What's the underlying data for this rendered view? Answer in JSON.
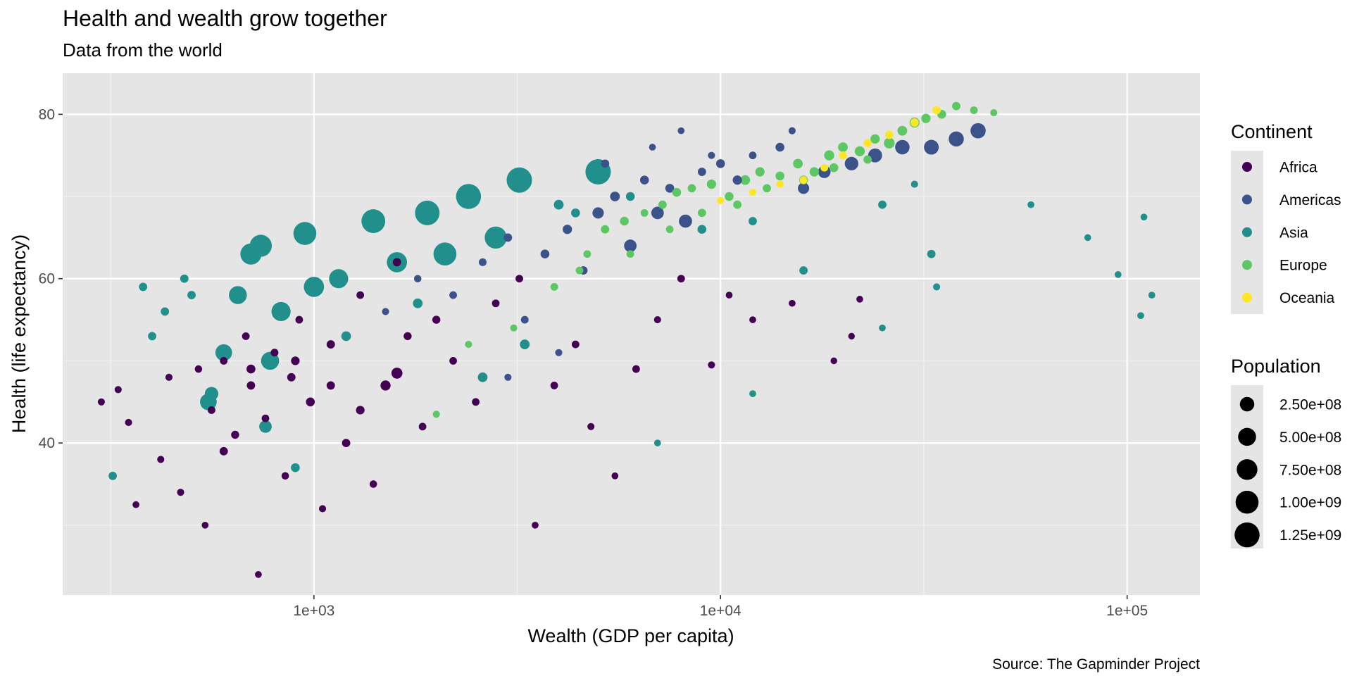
{
  "chart_data": {
    "type": "scatter",
    "title": "Health and wealth grow together",
    "subtitle": "Data from the world",
    "xlabel": "Wealth (GDP per capita)",
    "ylabel": "Health (life expectancy)",
    "caption": "Source: The Gapminder Project",
    "x_scale": "log10",
    "xlim": [
      241,
      151000
    ],
    "ylim": [
      21.5,
      85
    ],
    "x_ticks": [
      {
        "value": 1000,
        "label": "1e+03"
      },
      {
        "value": 10000,
        "label": "1e+04"
      },
      {
        "value": 100000,
        "label": "1e+05"
      }
    ],
    "y_ticks": [
      {
        "value": 40,
        "label": "40"
      },
      {
        "value": 60,
        "label": "60"
      },
      {
        "value": 80,
        "label": "80"
      }
    ],
    "color_legend": {
      "title": "Continent",
      "items": [
        {
          "label": "Africa",
          "color": "#440154"
        },
        {
          "label": "Americas",
          "color": "#3B528B"
        },
        {
          "label": "Asia",
          "color": "#21908C"
        },
        {
          "label": "Europe",
          "color": "#5DC863"
        },
        {
          "label": "Oceania",
          "color": "#FDE725"
        }
      ]
    },
    "size_legend": {
      "title": "Population",
      "items": [
        {
          "label": "2.50e+08",
          "value": 250000000
        },
        {
          "label": "5.00e+08",
          "value": 500000000
        },
        {
          "label": "7.50e+08",
          "value": 750000000
        },
        {
          "label": "1.00e+09",
          "value": 1000000000
        },
        {
          "label": "1.25e+09",
          "value": 1250000000
        }
      ]
    },
    "series": [
      {
        "name": "Africa",
        "points": [
          [
            300,
            45,
            5000000.0
          ],
          [
            330,
            46.5,
            5000000.0
          ],
          [
            350,
            42.5,
            5000000.0
          ],
          [
            365,
            32.5,
            3000000.0
          ],
          [
            420,
            38,
            5000000.0
          ],
          [
            440,
            48,
            5000000.0
          ],
          [
            470,
            34,
            5000000.0
          ],
          [
            520,
            49,
            8000000.0
          ],
          [
            540,
            30,
            3000000.0
          ],
          [
            560,
            44,
            10000000.0
          ],
          [
            600,
            50,
            10000000.0
          ],
          [
            640,
            41,
            15000000.0
          ],
          [
            680,
            53,
            10000000.0
          ],
          [
            700,
            47,
            20000000.0
          ],
          [
            730,
            24,
            3000000.0
          ],
          [
            760,
            43,
            10000000.0
          ],
          [
            800,
            51,
            12000000.0
          ],
          [
            850,
            36,
            8000000.0
          ],
          [
            880,
            48,
            20000000.0
          ],
          [
            920,
            55,
            10000000.0
          ],
          [
            980,
            45,
            30000000.0
          ],
          [
            1050,
            32,
            5000000.0
          ],
          [
            1100,
            52,
            20000000.0
          ],
          [
            1200,
            40,
            20000000.0
          ],
          [
            1300,
            58,
            10000000.0
          ],
          [
            1400,
            35,
            8000000.0
          ],
          [
            1500,
            47,
            60000000.0
          ],
          [
            1600,
            48.5,
            90000000.0
          ],
          [
            1700,
            53,
            15000000.0
          ],
          [
            1850,
            42,
            10000000.0
          ],
          [
            2000,
            55,
            15000000.0
          ],
          [
            2200,
            50,
            10000000.0
          ],
          [
            2500,
            45,
            10000000.0
          ],
          [
            2800,
            57,
            10000000.0
          ],
          [
            3200,
            60,
            10000000.0
          ],
          [
            3500,
            30,
            3000000.0
          ],
          [
            3900,
            47,
            10000000.0
          ],
          [
            4400,
            52,
            10000000.0
          ],
          [
            4800,
            42,
            5000000.0
          ],
          [
            5500,
            36,
            3000000.0
          ],
          [
            6200,
            49,
            10000000.0
          ],
          [
            7000,
            55,
            5000000.0
          ],
          [
            8000,
            60,
            10000000.0
          ],
          [
            9500,
            49.5,
            5000000.0
          ],
          [
            10500,
            58,
            3000000.0
          ],
          [
            12000,
            55,
            3000000.0
          ],
          [
            15000,
            57,
            3000000.0
          ],
          [
            19000,
            50,
            2000000.0
          ],
          [
            21000,
            53,
            2000000.0
          ],
          [
            22000,
            57.5,
            3000000.0
          ],
          [
            700,
            49,
            30000000.0
          ],
          [
            900,
            50,
            25000000.0
          ],
          [
            1100,
            47,
            20000000.0
          ],
          [
            1300,
            44,
            25000000.0
          ],
          [
            600,
            39,
            20000000.0
          ],
          [
            1600,
            62,
            20000000.0
          ]
        ]
      },
      {
        "name": "Americas",
        "points": [
          [
            1500,
            56,
            5000000.0
          ],
          [
            1800,
            60,
            8000000.0
          ],
          [
            2200,
            58,
            10000000.0
          ],
          [
            2600,
            62,
            12000000.0
          ],
          [
            3000,
            65,
            20000000.0
          ],
          [
            3300,
            55,
            10000000.0
          ],
          [
            3700,
            63,
            30000000.0
          ],
          [
            4200,
            66,
            40000000.0
          ],
          [
            4600,
            61,
            20000000.0
          ],
          [
            5000,
            68,
            100000000.0
          ],
          [
            5500,
            70,
            50000000.0
          ],
          [
            6000,
            64,
            150000000.0
          ],
          [
            6500,
            72,
            30000000.0
          ],
          [
            7000,
            68,
            150000000.0
          ],
          [
            7500,
            71,
            30000000.0
          ],
          [
            8200,
            67,
            180000000.0
          ],
          [
            9000,
            73,
            20000000.0
          ],
          [
            10000,
            74,
            30000000.0
          ],
          [
            11000,
            72,
            40000000.0
          ],
          [
            12000,
            75,
            10000000.0
          ],
          [
            14000,
            76,
            30000000.0
          ],
          [
            16000,
            71,
            100000000.0
          ],
          [
            18000,
            73,
            150000000.0
          ],
          [
            21000,
            74,
            200000000.0
          ],
          [
            24000,
            75,
            220000000.0
          ],
          [
            28000,
            76,
            250000000.0
          ],
          [
            33000,
            76,
            270000000.0
          ],
          [
            38000,
            77,
            290000000.0
          ],
          [
            43000,
            78,
            300000000.0
          ],
          [
            3000,
            48,
            5000000.0
          ],
          [
            4000,
            51,
            5000000.0
          ],
          [
            6800,
            76,
            3000000.0
          ],
          [
            8000,
            78,
            3000000.0
          ],
          [
            9500,
            75,
            5000000.0
          ],
          [
            15000,
            78,
            5000000.0
          ],
          [
            5200,
            74,
            20000000.0
          ]
        ]
      },
      {
        "name": "Asia",
        "points": [
          [
            320,
            36,
            20000000.0
          ],
          [
            380,
            59,
            20000000.0
          ],
          [
            400,
            53,
            20000000.0
          ],
          [
            430,
            56,
            20000000.0
          ],
          [
            480,
            60,
            20000000.0
          ],
          [
            500,
            58,
            20000000.0
          ],
          [
            550,
            45,
            400000000.0
          ],
          [
            600,
            51,
            400000000.0
          ],
          [
            650,
            58,
            500000000.0
          ],
          [
            700,
            63,
            800000000.0
          ],
          [
            740,
            64,
            900000000.0
          ],
          [
            780,
            50,
            500000000.0
          ],
          [
            830,
            56,
            600000000.0
          ],
          [
            950,
            65.5,
            1000000000.0
          ],
          [
            1000,
            59,
            700000000.0
          ],
          [
            1150,
            60,
            600000000.0
          ],
          [
            1400,
            67,
            1100000000.0
          ],
          [
            1600,
            62,
            700000000.0
          ],
          [
            1900,
            68,
            1200000000.0
          ],
          [
            2100,
            63,
            1000000000.0
          ],
          [
            2400,
            70,
            1250000000.0
          ],
          [
            2800,
            65,
            900000000.0
          ],
          [
            3200,
            72,
            1300000000.0
          ],
          [
            5000,
            73,
            1300000000.0
          ],
          [
            4000,
            69,
            50000000.0
          ],
          [
            3300,
            52,
            50000000.0
          ],
          [
            2600,
            48,
            50000000.0
          ],
          [
            4400,
            68,
            30000000.0
          ],
          [
            6000,
            70,
            30000000.0
          ],
          [
            9000,
            66,
            30000000.0
          ],
          [
            12000,
            67,
            20000000.0
          ],
          [
            16000,
            61,
            20000000.0
          ],
          [
            25000,
            69,
            20000000.0
          ],
          [
            33000,
            63,
            20000000.0
          ],
          [
            58000,
            69,
            3000000.0
          ],
          [
            80000,
            65,
            3000000.0
          ],
          [
            95000,
            60.5,
            3000000.0
          ],
          [
            108000,
            55.5,
            3000000.0
          ],
          [
            110000,
            67.5,
            3000000.0
          ],
          [
            115000,
            58,
            3000000.0
          ],
          [
            34000,
            59,
            5000000.0
          ],
          [
            30000,
            71.5,
            5000000.0
          ],
          [
            12000,
            46,
            3000000.0
          ],
          [
            7000,
            40,
            3000000.0
          ],
          [
            900,
            37,
            30000000.0
          ],
          [
            760,
            42,
            150000000.0
          ],
          [
            560,
            46,
            200000000.0
          ],
          [
            1200,
            53,
            50000000.0
          ],
          [
            1800,
            57,
            50000000.0
          ],
          [
            25000,
            54,
            3000000.0
          ]
        ]
      },
      {
        "name": "Europe",
        "points": [
          [
            2000,
            43.5,
            5000000.0
          ],
          [
            2400,
            52,
            5000000.0
          ],
          [
            3100,
            54,
            5000000.0
          ],
          [
            3900,
            59,
            10000000.0
          ],
          [
            4500,
            61,
            10000000.0
          ],
          [
            4700,
            63,
            10000000.0
          ],
          [
            5200,
            66,
            20000000.0
          ],
          [
            5800,
            67,
            30000000.0
          ],
          [
            6500,
            68,
            10000000.0
          ],
          [
            7200,
            69,
            20000000.0
          ],
          [
            7800,
            70.5,
            30000000.0
          ],
          [
            8500,
            71,
            20000000.0
          ],
          [
            9500,
            71.5,
            40000000.0
          ],
          [
            10500,
            70,
            30000000.0
          ],
          [
            11500,
            72,
            50000000.0
          ],
          [
            12500,
            73,
            40000000.0
          ],
          [
            14000,
            72.5,
            30000000.0
          ],
          [
            15500,
            74,
            50000000.0
          ],
          [
            17000,
            73,
            40000000.0
          ],
          [
            18500,
            75,
            60000000.0
          ],
          [
            20000,
            76,
            50000000.0
          ],
          [
            22000,
            75.5,
            60000000.0
          ],
          [
            24000,
            77,
            40000000.0
          ],
          [
            26000,
            76.5,
            80000000.0
          ],
          [
            28000,
            78,
            50000000.0
          ],
          [
            30000,
            79,
            60000000.0
          ],
          [
            32000,
            79.5,
            40000000.0
          ],
          [
            35000,
            80,
            30000000.0
          ],
          [
            38000,
            81,
            20000000.0
          ],
          [
            42000,
            80.5,
            10000000.0
          ],
          [
            47000,
            80.2,
            5000000.0
          ],
          [
            6000,
            63,
            10000000.0
          ],
          [
            7500,
            66,
            10000000.0
          ],
          [
            9000,
            68,
            20000000.0
          ],
          [
            11000,
            69,
            20000000.0
          ],
          [
            13000,
            71,
            20000000.0
          ],
          [
            16000,
            72,
            30000000.0
          ],
          [
            19000,
            73.5,
            30000000.0
          ],
          [
            23000,
            74.5,
            20000000.0
          ]
        ]
      },
      {
        "name": "Oceania",
        "points": [
          [
            10000,
            69.5,
            5000000.0
          ],
          [
            12000,
            70.5,
            5000000.0
          ],
          [
            14000,
            71.5,
            8000000.0
          ],
          [
            16000,
            72,
            10000000.0
          ],
          [
            18000,
            73.5,
            10000000.0
          ],
          [
            20000,
            75,
            15000000.0
          ],
          [
            23000,
            76.5,
            15000000.0
          ],
          [
            26000,
            77.5,
            20000000.0
          ],
          [
            30000,
            79,
            20000000.0
          ],
          [
            34000,
            80.5,
            20000000.0
          ]
        ]
      }
    ]
  }
}
